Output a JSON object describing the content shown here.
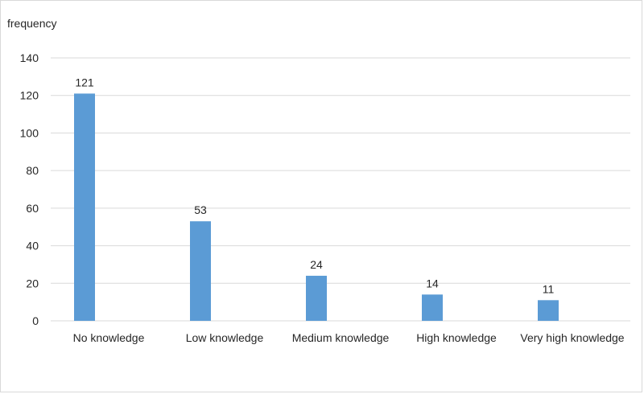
{
  "chart_data": {
    "type": "bar",
    "title": "",
    "xlabel": "",
    "ylabel": "frequency",
    "categories": [
      "No knowledge",
      "Low knowledge",
      "Medium knowledge",
      "High knowledge",
      "Very high knowledge"
    ],
    "values": [
      121,
      53,
      24,
      14,
      11
    ],
    "data_labels": [
      "121",
      "53",
      "24",
      "14",
      "11"
    ],
    "ylim": [
      0,
      140
    ],
    "yticks": [
      0,
      20,
      40,
      60,
      80,
      100,
      120,
      140
    ],
    "grid": true,
    "legend": "none",
    "bar_color": "#5b9bd5",
    "grid_color": "#d9d9d9"
  }
}
